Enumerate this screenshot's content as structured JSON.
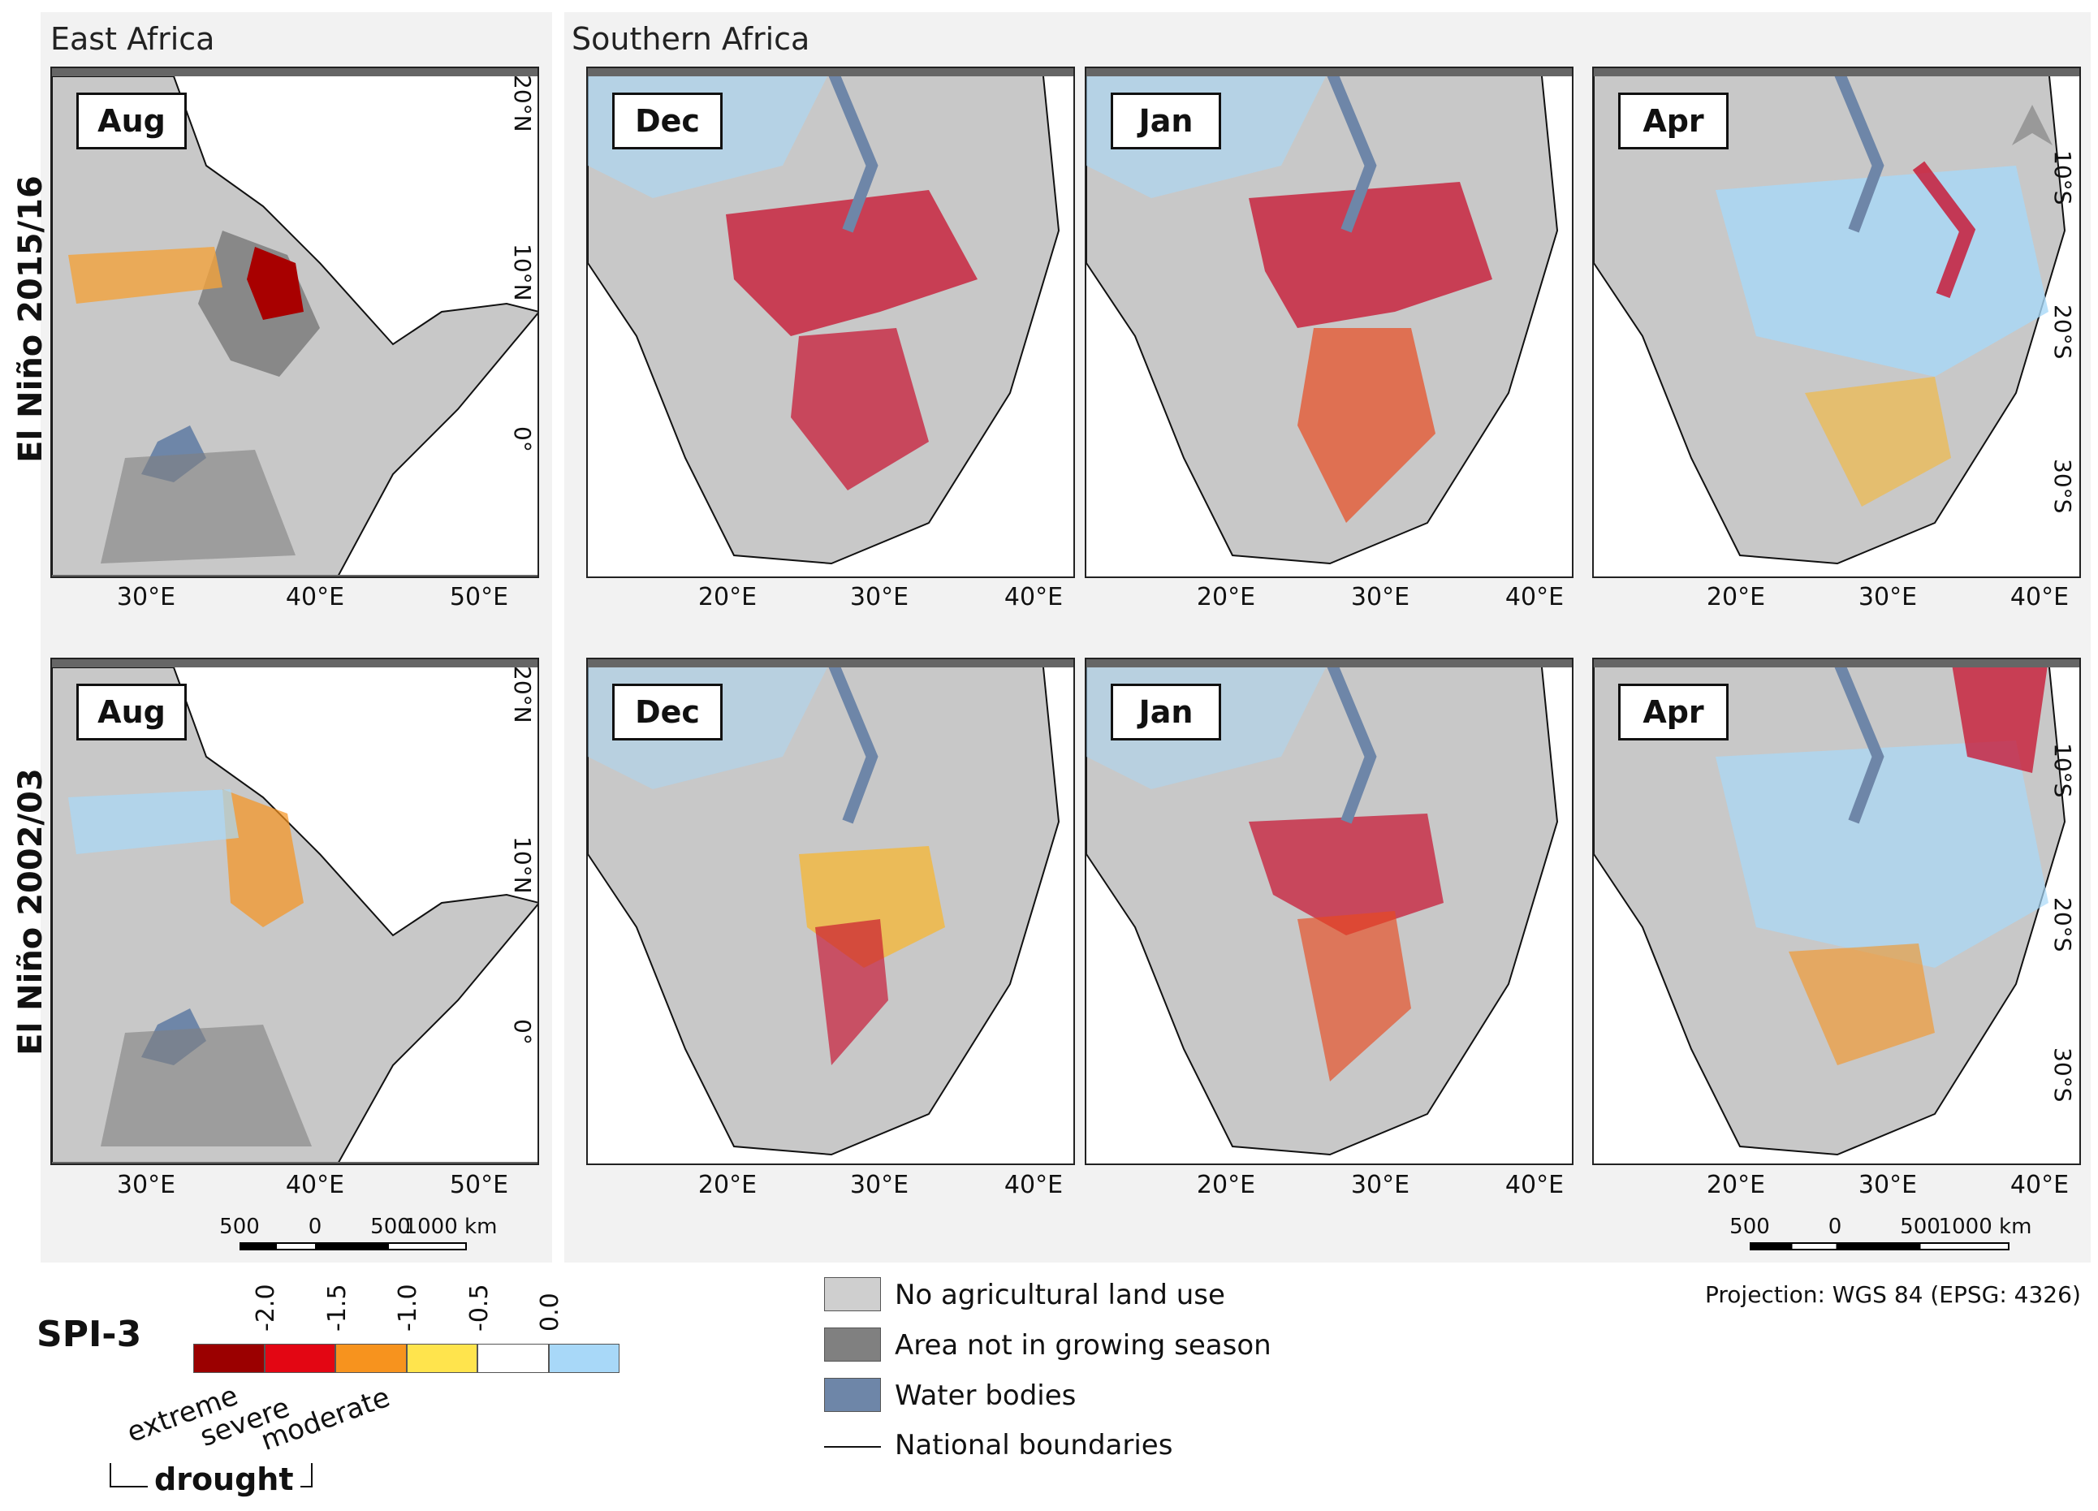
{
  "regions": {
    "east": "East Africa",
    "south": "Southern Africa"
  },
  "rows": [
    "El Niño 2015/16",
    "El Niño 2002/03"
  ],
  "panels": {
    "row1": [
      "Aug",
      "Dec",
      "Jan",
      "Apr"
    ],
    "row2": [
      "Aug",
      "Dec",
      "Jan",
      "Apr"
    ]
  },
  "axes": {
    "east_x": [
      "30°E",
      "40°E",
      "50°E"
    ],
    "east_y": [
      "20°N",
      "10°N",
      "0°"
    ],
    "south_x": [
      "20°E",
      "30°E",
      "40°E"
    ],
    "south_y": [
      "10°S",
      "20°S",
      "30°S"
    ]
  },
  "scalebar": {
    "labels": [
      "500",
      "0",
      "500",
      "1000 km"
    ]
  },
  "spi_legend": {
    "title": "SPI-3",
    "ticks": [
      "-2.0",
      "-1.5",
      "-1.0",
      "-0.5",
      "0.0"
    ],
    "colors": [
      "#9b0000",
      "#e30613",
      "#f7931e",
      "#ffe44d",
      "#ffffff",
      "#a8d8f8"
    ],
    "categories": [
      "extreme",
      "severe",
      "moderate"
    ],
    "group_label": "drought"
  },
  "landuse_legend": [
    {
      "label": "No agricultural land use",
      "color": "#cfcfcf"
    },
    {
      "label": "Area not in growing season",
      "color": "#808080"
    },
    {
      "label": "Water bodies",
      "color": "#6e86a8"
    },
    {
      "label": "National boundaries",
      "color": "#111111"
    }
  ],
  "projection": "Projection: WGS 84 (EPSG: 4326)"
}
